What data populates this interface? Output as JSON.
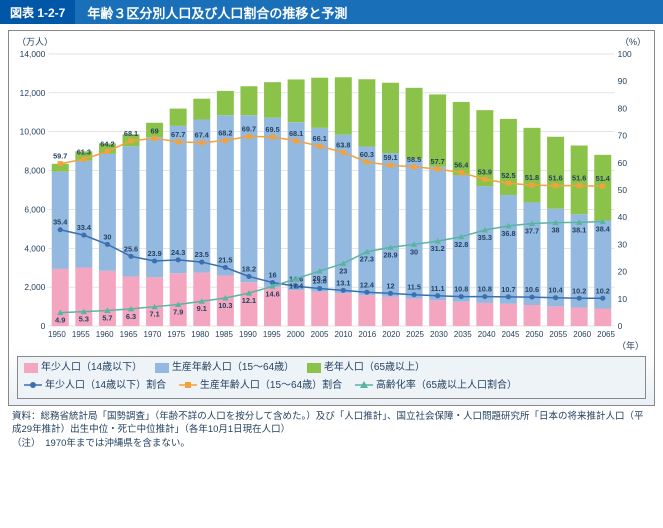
{
  "header": {
    "fignum": "図表 1-2-7",
    "title": "年齢３区分別人口及び人口割合の推移と予測"
  },
  "axis_left_unit": "（万人）",
  "axis_right_unit": "（%）",
  "x_unit": "（年）",
  "years": [
    "1950",
    "1955",
    "1960",
    "1965",
    "1970",
    "1975",
    "1980",
    "1985",
    "1990",
    "1995",
    "2000",
    "2005",
    "2010",
    "2016",
    "2020",
    "2025",
    "2030",
    "2035",
    "2040",
    "2045",
    "2050",
    "2055",
    "2060",
    "2065"
  ],
  "yl": {
    "min": 0,
    "max": 14000,
    "step": 2000
  },
  "yr": {
    "min": 0,
    "max": 100,
    "step": 10
  },
  "colors": {
    "young_bar": "#f4a6c0",
    "working_bar": "#94b9e0",
    "old_bar": "#8bc34a",
    "young_line": "#3a6fb0",
    "working_line": "#f2a23c",
    "aging_line": "#5ab5a0",
    "grid": "#c8c8c8",
    "text": "#23415f"
  },
  "bars": {
    "young": [
      2940,
      3010,
      2840,
      2550,
      2520,
      2720,
      2750,
      2600,
      2250,
      2000,
      1850,
      1760,
      1680,
      1580,
      1500,
      1410,
      1320,
      1250,
      1190,
      1140,
      1080,
      1010,
      950,
      900
    ],
    "working": [
      5000,
      5500,
      6020,
      6700,
      7200,
      7580,
      7880,
      8250,
      8600,
      8720,
      8640,
      8440,
      8170,
      7660,
      7400,
      7170,
      6880,
      6500,
      6000,
      5600,
      5280,
      5030,
      4800,
      4530
    ],
    "old": [
      410,
      480,
      540,
      620,
      740,
      890,
      1070,
      1250,
      1490,
      1830,
      2200,
      2580,
      2950,
      3460,
      3620,
      3680,
      3720,
      3780,
      3920,
      3920,
      3840,
      3700,
      3540,
      3380
    ]
  },
  "lines": {
    "working_ratio": [
      59.7,
      61.3,
      64.2,
      68.1,
      69.0,
      67.7,
      67.4,
      68.2,
      69.7,
      69.5,
      68.1,
      66.1,
      63.8,
      60.3,
      59.1,
      58.5,
      57.7,
      56.4,
      53.9,
      52.5,
      51.8,
      51.6,
      51.6,
      51.4
    ],
    "young_ratio": [
      35.4,
      33.4,
      30.0,
      25.6,
      23.9,
      24.3,
      23.5,
      21.5,
      18.2,
      16.0,
      14.6,
      13.8,
      13.1,
      12.4,
      12.0,
      11.5,
      11.1,
      10.8,
      10.8,
      10.7,
      10.6,
      10.4,
      10.2,
      10.2
    ],
    "aging_ratio": [
      4.9,
      5.3,
      5.7,
      6.3,
      7.1,
      7.9,
      9.1,
      10.3,
      12.1,
      14.6,
      17.4,
      20.2,
      23.0,
      27.3,
      28.9,
      30.0,
      31.2,
      32.8,
      35.3,
      36.8,
      37.7,
      38.0,
      38.1,
      38.4
    ]
  },
  "line_labels": {
    "working": [
      59.7,
      61.3,
      64.2,
      68.1,
      69.0,
      67.7,
      67.4,
      68.2,
      69.7,
      69.5,
      68.1,
      66.1,
      63.8,
      60.3,
      59.1,
      58.5,
      57.7,
      56.4,
      53.9,
      52.5,
      51.8,
      51.6,
      51.6,
      51.4
    ],
    "young": [
      35.4,
      33.4,
      30.0,
      25.6,
      23.9,
      24.3,
      23.5,
      21.5,
      18.2,
      16.0,
      14.6,
      13.8,
      13.1,
      12.4,
      12.0,
      11.5,
      11.1,
      10.8,
      10.8,
      10.7,
      10.6,
      10.4,
      10.2,
      10.2
    ],
    "aging": [
      4.9,
      5.3,
      5.7,
      6.3,
      7.1,
      7.9,
      9.1,
      10.3,
      12.1,
      14.6,
      17.4,
      20.2,
      23.0,
      27.3,
      28.9,
      30.0,
      31.2,
      32.8,
      35.3,
      36.8,
      37.7,
      38.0,
      38.1,
      38.4
    ]
  },
  "legend": {
    "young_bar": "年少人口（14歳以下）",
    "working_bar": "生産年齢人口（15～64歳）",
    "old_bar": "老年人口（65歳以上）",
    "young_line": "年少人口（14歳以下）割合",
    "working_line": "生産年齢人口（15～64歳）割合",
    "aging_line": "高齢化率（65歳以上人口割合）"
  },
  "footer": {
    "src": "資料：総務省統計局「国勢調査」（年齢不詳の人口を按分して含めた。）及び「人口推計」、国立社会保障・人口問題研究所「日本の将来推計人口（平成29年推計）出生中位・死亡中位推計」（各年10月1日現在人口）",
    "note": "（注）　1970年までは沖縄県を含まない。"
  }
}
